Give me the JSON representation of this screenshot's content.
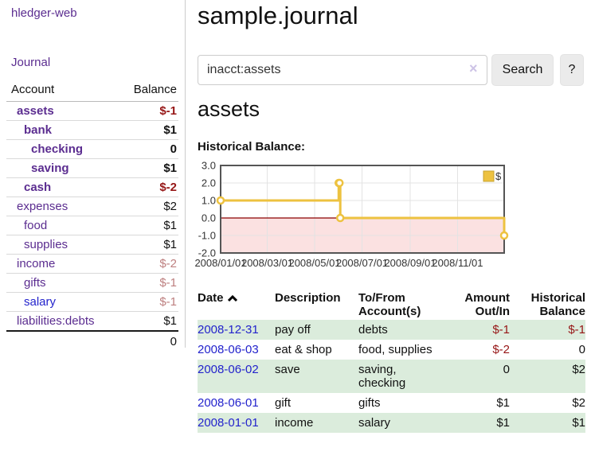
{
  "colors": {
    "purple": "#5b2d90",
    "blue_link": "#2323cc",
    "neg_strong": "#961616",
    "neg_muted": "#bd7f7f",
    "row_green": "#dbecdc",
    "chart_line": "#edc240",
    "chart_neg_fill": "#fbe1e1",
    "chart_zero_line": "#8b0000",
    "chart_grid": "#e3e3e3",
    "chart_border": "#555555"
  },
  "app": {
    "title": "hledger-web",
    "nav": {
      "journal": "Journal"
    }
  },
  "sidebar": {
    "accounts_header": {
      "account": "Account",
      "balance": "Balance"
    },
    "accounts": [
      {
        "label": "assets",
        "value": "$-1",
        "indent": 0,
        "bold": true,
        "value_style": "neg"
      },
      {
        "label": "bank",
        "value": "$1",
        "indent": 1,
        "bold": true,
        "value_style": ""
      },
      {
        "label": "checking",
        "value": "0",
        "indent": 2,
        "bold": true,
        "value_style": ""
      },
      {
        "label": "saving",
        "value": "$1",
        "indent": 2,
        "bold": true,
        "value_style": ""
      },
      {
        "label": "cash",
        "value": "$-2",
        "indent": 1,
        "bold": true,
        "value_style": "neg"
      },
      {
        "label": "expenses",
        "value": "$2",
        "indent": 0,
        "bold": false,
        "value_style": ""
      },
      {
        "label": "food",
        "value": "$1",
        "indent": 1,
        "bold": false,
        "value_style": ""
      },
      {
        "label": "supplies",
        "value": "$1",
        "indent": 1,
        "bold": false,
        "value_style": ""
      },
      {
        "label": "income",
        "value": "$-2",
        "indent": 0,
        "bold": false,
        "value_style": "neg-muted"
      },
      {
        "label": "gifts",
        "value": "$-1",
        "indent": 1,
        "bold": false,
        "value_style": "neg-muted"
      },
      {
        "label": "salary",
        "value": "$-1",
        "indent": 1,
        "bold": false,
        "value_style": "neg-muted",
        "link_style": "blue"
      },
      {
        "label": "liabilities:debts",
        "value": "$1",
        "indent": 0,
        "bold": false,
        "value_style": ""
      }
    ],
    "total": "0"
  },
  "main": {
    "title": "sample.journal",
    "search": {
      "value": "inacct:assets",
      "clear_icon": "×",
      "button_label": "Search",
      "help_label": "?"
    },
    "account_heading": "assets",
    "chart_title": "Historical Balance:"
  },
  "chart_data": {
    "type": "line",
    "step": true,
    "title": "Historical Balance",
    "legend": {
      "label": "$",
      "position": "top-right"
    },
    "ylim": [
      -2,
      3
    ],
    "y_ticks": [
      3.0,
      2.0,
      1.0,
      0.0,
      -1.0,
      -2.0
    ],
    "x_tick_labels": [
      "2008/01/01",
      "2008/03/01",
      "2008/05/01",
      "2008/07/01",
      "2008/09/01",
      "2008/11/01"
    ],
    "x_range": [
      "2008-01-01",
      "2008-12-31"
    ],
    "negative_region_shaded": true,
    "series": [
      {
        "name": "$",
        "points": [
          [
            "2008-01-01",
            1
          ],
          [
            "2008-06-01",
            2
          ],
          [
            "2008-06-02",
            2
          ],
          [
            "2008-06-03",
            0
          ],
          [
            "2008-12-31",
            -1
          ]
        ]
      }
    ]
  },
  "register": {
    "headers": {
      "date": "Date",
      "sort_icon": "chevron-up",
      "description": "Description",
      "account": "To/From Account(s)",
      "amount": "Amount Out/In",
      "balance": "Historical Balance"
    },
    "rows": [
      {
        "date": "2008-12-31",
        "description": "pay off",
        "account": "debts",
        "amount": "$-1",
        "amount_neg": true,
        "balance": "$-1",
        "balance_neg": true
      },
      {
        "date": "2008-06-03",
        "description": "eat & shop",
        "account": "food, supplies",
        "amount": "$-2",
        "amount_neg": true,
        "balance": "0",
        "balance_neg": false
      },
      {
        "date": "2008-06-02",
        "description": "save",
        "account": "saving, checking",
        "amount": "0",
        "amount_neg": false,
        "balance": "$2",
        "balance_neg": false
      },
      {
        "date": "2008-06-01",
        "description": "gift",
        "account": "gifts",
        "amount": "$1",
        "amount_neg": false,
        "balance": "$2",
        "balance_neg": false
      },
      {
        "date": "2008-01-01",
        "description": "income",
        "account": "salary",
        "amount": "$1",
        "amount_neg": false,
        "balance": "$1",
        "balance_neg": false
      }
    ]
  }
}
